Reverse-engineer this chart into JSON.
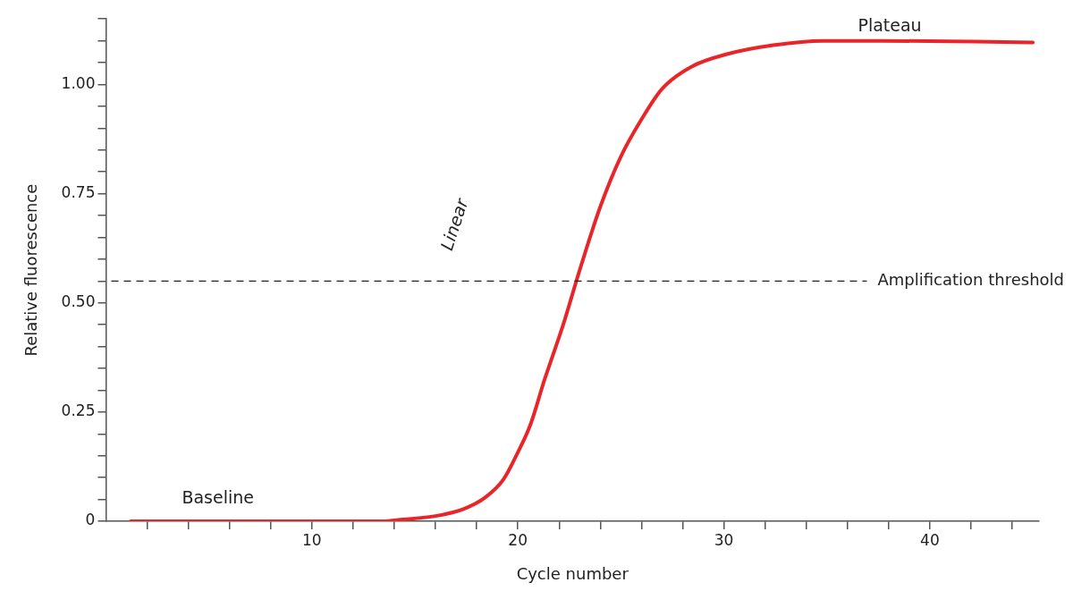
{
  "chart_data": {
    "type": "line",
    "xlabel": "Cycle number",
    "ylabel": "Relative fluorescence",
    "x": [
      1.2,
      13.4,
      14.4,
      16,
      17.3,
      18.4,
      19.3,
      20,
      20.6,
      21.3,
      22.2,
      23,
      24,
      25,
      26,
      27,
      28.4,
      30.2,
      32.4,
      34.8,
      37.7,
      42.2,
      45
    ],
    "series": [
      {
        "color": "#e8262a",
        "values": [
          0,
          0,
          0.004,
          0.012,
          0.027,
          0.054,
          0.096,
          0.158,
          0.22,
          0.325,
          0.45,
          0.575,
          0.72,
          0.835,
          0.92,
          0.99,
          1.04,
          1.07,
          1.09,
          1.1,
          1.1,
          1.098,
          1.096
        ]
      }
    ],
    "xlim": [
      0,
      45.3
    ],
    "ylim": [
      0,
      1.15
    ],
    "xticks": [
      {
        "value": 2,
        "label": null
      },
      {
        "value": 4,
        "label": null
      },
      {
        "value": 6,
        "label": null
      },
      {
        "value": 8,
        "label": null
      },
      10,
      {
        "value": 12,
        "label": null
      },
      {
        "value": 14,
        "label": null
      },
      {
        "value": 16,
        "label": null
      },
      {
        "value": 18,
        "label": null
      },
      20,
      {
        "value": 22,
        "label": null
      },
      {
        "value": 24,
        "label": null
      },
      {
        "value": 26,
        "label": null
      },
      {
        "value": 28,
        "label": null
      },
      30,
      {
        "value": 32,
        "label": null
      },
      {
        "value": 34,
        "label": null
      },
      {
        "value": 36,
        "label": null
      },
      {
        "value": 38,
        "label": null
      },
      40,
      {
        "value": 42,
        "label": null
      },
      {
        "value": 44,
        "label": null
      }
    ],
    "yticks": [
      {
        "value": 0,
        "label": "0"
      },
      {
        "value": 0.05,
        "label": null
      },
      {
        "value": 0.1,
        "label": null
      },
      {
        "value": 0.15,
        "label": null
      },
      {
        "value": 0.2,
        "label": null
      },
      {
        "value": 0.25,
        "label": "0.25"
      },
      {
        "value": 0.3,
        "label": null
      },
      {
        "value": 0.35,
        "label": null
      },
      {
        "value": 0.4,
        "label": null
      },
      {
        "value": 0.45,
        "label": null
      },
      {
        "value": 0.5,
        "label": "0.50"
      },
      {
        "value": 0.55,
        "label": null
      },
      {
        "value": 0.6,
        "label": null
      },
      {
        "value": 0.65,
        "label": null
      },
      {
        "value": 0.7,
        "label": null
      },
      {
        "value": 0.75,
        "label": "0.75"
      },
      {
        "value": 0.8,
        "label": null
      },
      {
        "value": 0.85,
        "label": null
      },
      {
        "value": 0.9,
        "label": null
      },
      {
        "value": 0.95,
        "label": null
      },
      {
        "value": 1,
        "label": "1.00"
      },
      {
        "value": 1.05,
        "label": null
      },
      {
        "value": 1.1,
        "label": null
      },
      {
        "value": 1.15,
        "label": null
      }
    ],
    "ref_lines": [
      {
        "axis": "y",
        "value": 0.55,
        "label": "Amplification threshold",
        "color": "#222222",
        "line_style": "dashed"
      }
    ],
    "annotations": [
      "Baseline",
      "Linear",
      "Plateau"
    ],
    "grid": false,
    "legend": false,
    "marker": "none",
    "line_style": "solid"
  }
}
